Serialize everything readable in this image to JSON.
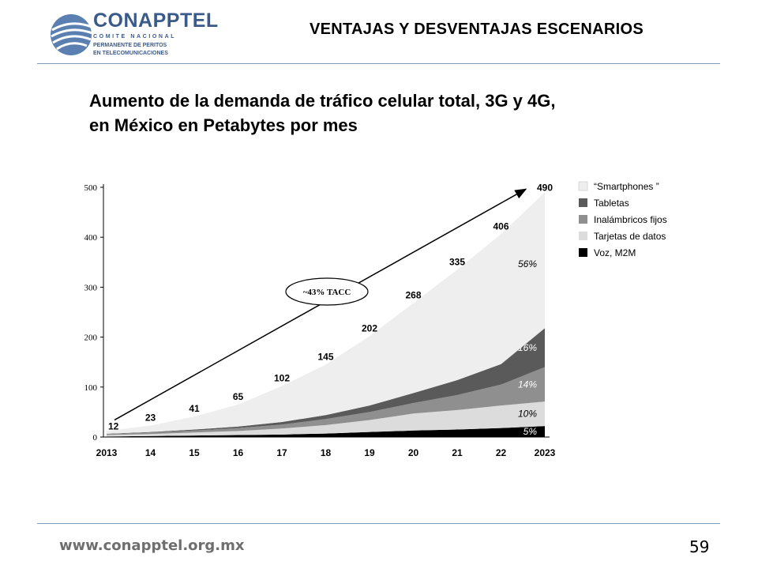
{
  "logo": {
    "name": "CONAPPTEL",
    "line1": "COMITE NACIONAL",
    "line2": "PERMANENTE DE PERITOS",
    "line3": "EN TELECOMUNICACIONES"
  },
  "header": {
    "title": "VENTAJAS Y DESVENTAJAS ESCENARIOS"
  },
  "slide": {
    "title_line1": "Aumento de la demanda de tráfico celular total, 3G y 4G,",
    "title_line2": "en México en Petabytes por mes"
  },
  "footer": {
    "url": "www.conapptel.org.mx",
    "page": "59"
  },
  "chart_data": {
    "type": "area",
    "stacked": true,
    "categories": [
      "2013",
      "14",
      "15",
      "16",
      "17",
      "18",
      "19",
      "20",
      "21",
      "22",
      "2023"
    ],
    "ylim": [
      0,
      500
    ],
    "yticks": [
      0,
      100,
      200,
      300,
      400,
      500
    ],
    "totals": [
      12,
      23,
      41,
      65,
      102,
      145,
      202,
      268,
      335,
      406,
      490
    ],
    "series": [
      {
        "name": "Voz, M2M",
        "color": "#000000",
        "values": [
          1,
          2,
          3,
          4,
          5,
          7,
          10,
          13,
          15,
          18,
          22
        ],
        "share_label": "5%"
      },
      {
        "name": "Tarjetas de datos",
        "color": "#dcdcdc",
        "values": [
          3,
          4,
          6,
          8,
          12,
          17,
          24,
          34,
          39,
          45,
          49
        ],
        "share_label": "10%"
      },
      {
        "name": "Inalámbricos fijos",
        "color": "#8f8f8f",
        "values": [
          2,
          3,
          4,
          6,
          8,
          12,
          16,
          21,
          30,
          42,
          69
        ],
        "share_label": "14%"
      },
      {
        "name": "Tabletas",
        "color": "#5a5a5a",
        "values": [
          0.5,
          1,
          2,
          3,
          5,
          8,
          13,
          20,
          30,
          41,
          78
        ],
        "share_label": "16%"
      },
      {
        "name": "“Smartphones ”",
        "color": "#eeeeee",
        "values": [
          5.5,
          13,
          26,
          44,
          72,
          101,
          139,
          180,
          221,
          260,
          272
        ],
        "share_label": "56%"
      }
    ],
    "annotation": "~43% TACC",
    "legend_position": "right"
  }
}
